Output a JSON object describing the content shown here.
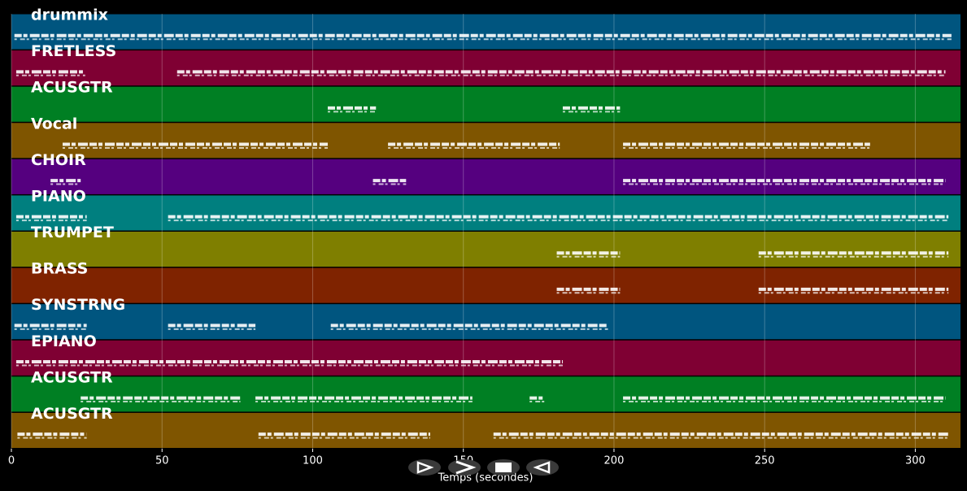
{
  "chart_data": {
    "type": "piano-roll",
    "x_label": "Temps (secondes)",
    "xlim": [
      0,
      315
    ],
    "xticks": [
      0,
      50,
      100,
      150,
      200,
      250,
      300
    ],
    "grid": true,
    "series": [
      {
        "name": "drummix",
        "color": "#00557f",
        "segments": [
          [
            1,
            312
          ]
        ]
      },
      {
        "name": "FRETLESS",
        "color": "#7f0033",
        "segments": [
          [
            1.6,
            24.5
          ],
          [
            55,
            310
          ]
        ]
      },
      {
        "name": "ACUSGTR",
        "color": "#007f23",
        "segments": [
          [
            105,
            121
          ],
          [
            183,
            202
          ]
        ]
      },
      {
        "name": "Vocal",
        "color": "#7f5500",
        "segments": [
          [
            17,
            105
          ],
          [
            125,
            182
          ],
          [
            203,
            285
          ]
        ]
      },
      {
        "name": "CHOIR",
        "color": "#55007f",
        "segments": [
          [
            13,
            23
          ],
          [
            120,
            131
          ],
          [
            203,
            310
          ]
        ]
      },
      {
        "name": "PIANO",
        "color": "#007f7f",
        "segments": [
          [
            1.6,
            25
          ],
          [
            52,
            311
          ]
        ]
      },
      {
        "name": "TRUMPET",
        "color": "#7f7f00",
        "segments": [
          [
            181,
            202
          ],
          [
            248,
            311
          ]
        ]
      },
      {
        "name": "BRASS",
        "color": "#7f2300",
        "segments": [
          [
            181,
            202
          ],
          [
            248,
            311
          ]
        ]
      },
      {
        "name": "SYNSTRNG",
        "color": "#00557f",
        "segments": [
          [
            1,
            25
          ],
          [
            52,
            81
          ],
          [
            106,
            198
          ]
        ]
      },
      {
        "name": "EPIANO",
        "color": "#7f0033",
        "segments": [
          [
            1.6,
            183
          ]
        ]
      },
      {
        "name": "ACUSGTR",
        "color": "#007f23",
        "segments": [
          [
            23,
            76
          ],
          [
            81,
            153
          ],
          [
            172,
            177
          ],
          [
            203,
            310
          ]
        ]
      },
      {
        "name": "ACUSGTR",
        "color": "#7f5500",
        "segments": [
          [
            2,
            25
          ],
          [
            82,
            139
          ],
          [
            160,
            311
          ]
        ]
      }
    ]
  }
}
